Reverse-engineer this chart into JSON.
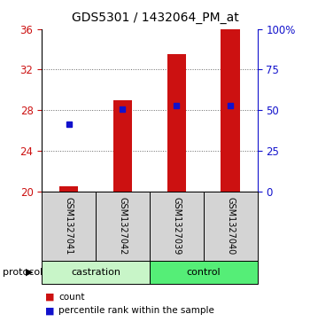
{
  "title": "GDS5301 / 1432064_PM_at",
  "samples": [
    "GSM1327041",
    "GSM1327042",
    "GSM1327039",
    "GSM1327040"
  ],
  "bar_values": [
    20.5,
    29.0,
    33.5,
    36.0
  ],
  "bar_bottom": 20.0,
  "percentile_values": [
    26.6,
    28.1,
    28.5,
    28.5
  ],
  "ylim_left": [
    20,
    36
  ],
  "ylim_right": [
    0,
    100
  ],
  "yticks_left": [
    20,
    24,
    28,
    32,
    36
  ],
  "yticks_right": [
    0,
    25,
    50,
    75,
    100
  ],
  "ytick_labels_right": [
    "0",
    "25",
    "50",
    "75",
    "100%"
  ],
  "bar_color": "#cc1111",
  "dot_color": "#1111cc",
  "left_tick_color": "#cc1111",
  "right_tick_color": "#1111cc",
  "castration_color": "#c8f5c8",
  "control_color": "#55ee77",
  "sample_box_color": "#d4d4d4",
  "grid_color": "#666666",
  "bar_width": 0.35,
  "title_fontsize": 10,
  "tick_fontsize": 8.5,
  "sample_fontsize": 7,
  "group_fontsize": 8,
  "legend_fontsize": 7.5
}
